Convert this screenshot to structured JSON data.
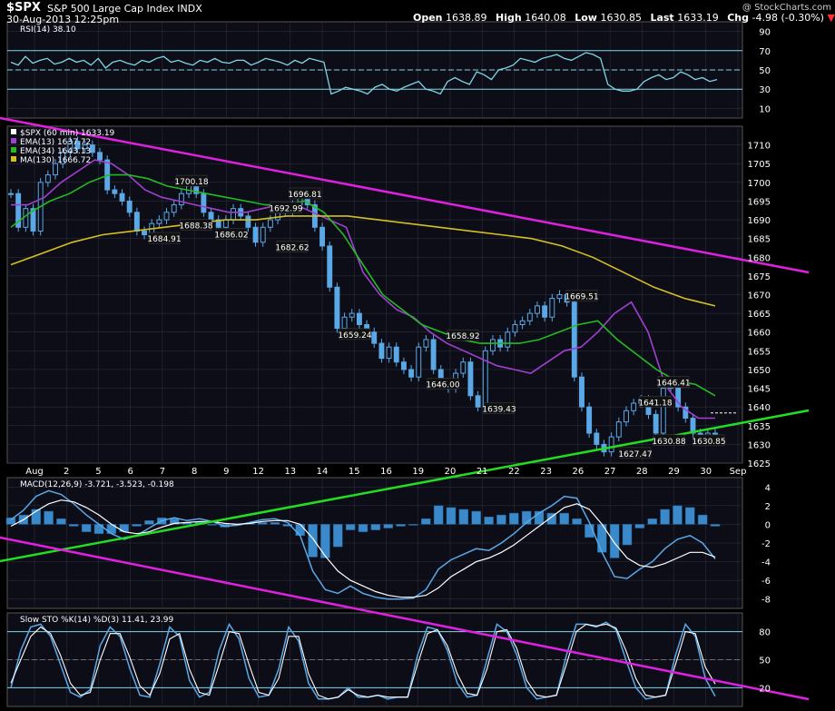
{
  "header": {
    "symbol": "$SPX",
    "description": "S&P 500 Large Cap Index  INDX",
    "datetime": "30-Aug-2013 12:25pm",
    "watermark": "@ StockCharts.com",
    "open_label": "Open",
    "open": "1638.89",
    "high_label": "High",
    "high": "1640.08",
    "low_label": "Low",
    "low": "1630.85",
    "last_label": "Last",
    "last": "1633.19",
    "chg_label": "Chg",
    "chg": "-4.98 (-0.30%)"
  },
  "colors": {
    "background": "#000000",
    "panel": "#0d0d18",
    "grid": "#333344",
    "candle": "#5aa9e6",
    "ema13": "#a040d0",
    "ema34": "#22bb22",
    "ma130": "#d4c020",
    "trend_magenta": "#e020e0",
    "trend_green": "#22dd22",
    "rsi_band": "#7fd6e6",
    "histogram": "#3a8acb",
    "signal_white": "#ffffff"
  },
  "chart_data": [
    {
      "type": "line",
      "title": "RSI(14) 38.10",
      "legend": [
        "RSI(14) 38.10"
      ],
      "ylim": [
        0,
        100
      ],
      "y_ticks": [
        10,
        30,
        50,
        70,
        90
      ],
      "bands": [
        30,
        70
      ],
      "series": [
        {
          "name": "RSI(14)",
          "values": [
            58,
            55,
            64,
            57,
            60,
            62,
            56,
            58,
            62,
            58,
            60,
            55,
            62,
            52,
            58,
            60,
            57,
            55,
            60,
            58,
            62,
            64,
            58,
            60,
            57,
            55,
            60,
            58,
            62,
            58,
            57,
            60,
            60,
            55,
            58,
            62,
            60,
            58,
            55,
            60,
            57,
            62,
            60,
            58,
            25,
            28,
            32,
            30,
            28,
            25,
            32,
            35,
            30,
            28,
            32,
            35,
            38,
            30,
            28,
            25,
            38,
            42,
            38,
            35,
            48,
            45,
            40,
            50,
            52,
            55,
            62,
            60,
            58,
            62,
            64,
            66,
            62,
            60,
            64,
            68,
            66,
            62,
            35,
            30,
            28,
            28,
            30,
            38,
            42,
            45,
            40,
            42,
            48,
            45,
            40,
            42,
            38,
            40
          ]
        }
      ]
    },
    {
      "type": "line",
      "title": "$SPX (60 min) 1633.19",
      "legend": [
        "$SPX (60 min) 1633.19",
        "EMA(13) 1637.72",
        "EMA(34) 1643.13",
        "MA(130) 1666.72"
      ],
      "x_tick_labels": [
        "Aug",
        "2",
        "5",
        "6",
        "7",
        "8",
        "9",
        "12",
        "13",
        "14",
        "15",
        "16",
        "19",
        "20",
        "21",
        "22",
        "23",
        "26",
        "27",
        "28",
        "29",
        "30",
        "Sep"
      ],
      "ylim": [
        1625,
        1715
      ],
      "y_ticks": [
        1625,
        1630,
        1635,
        1640,
        1645,
        1650,
        1655,
        1660,
        1665,
        1670,
        1675,
        1680,
        1685,
        1690,
        1695,
        1700,
        1705,
        1710
      ],
      "series": [
        {
          "name": "$SPX (60 min)",
          "values": [
            1697,
            1688,
            1693,
            1687,
            1700,
            1702,
            1705,
            1708,
            1711,
            1709,
            1710,
            1708,
            1706,
            1698,
            1697,
            1695,
            1692,
            1687,
            1686,
            1689,
            1690,
            1692,
            1694,
            1697,
            1700,
            1697,
            1692,
            1690,
            1688,
            1690,
            1693,
            1691,
            1688,
            1684,
            1688,
            1690,
            1693,
            1692,
            1694,
            1696,
            1694,
            1688,
            1683,
            1672,
            1661,
            1664,
            1665,
            1662,
            1660,
            1657,
            1653,
            1656,
            1652,
            1650,
            1648,
            1656,
            1658,
            1650,
            1646,
            1645,
            1649,
            1652,
            1643,
            1640,
            1655,
            1658,
            1656,
            1660,
            1662,
            1663,
            1665,
            1667,
            1664,
            1669,
            1670,
            1668,
            1648,
            1640,
            1633,
            1630,
            1628,
            1632,
            1636,
            1639,
            1641,
            1642,
            1638,
            1633,
            1645,
            1646,
            1640,
            1637,
            1633,
            1631,
            1633,
            1633
          ]
        },
        {
          "name": "EMA(13)",
          "values": [
            1694,
            1694,
            1696,
            1700,
            1703,
            1706,
            1705,
            1702,
            1698,
            1696,
            1695,
            1694,
            1693,
            1692,
            1692,
            1693,
            1694,
            1694,
            1692,
            1690,
            1688,
            1676,
            1670,
            1666,
            1664,
            1660,
            1657,
            1655,
            1653,
            1651,
            1650,
            1649,
            1652,
            1655,
            1656,
            1660,
            1665,
            1668,
            1660,
            1646,
            1640,
            1637,
            1637
          ]
        },
        {
          "name": "EMA(34)",
          "values": [
            1688,
            1692,
            1695,
            1697,
            1700,
            1702,
            1702,
            1701,
            1699,
            1698,
            1697,
            1696,
            1695,
            1694,
            1694,
            1695,
            1692,
            1686,
            1678,
            1670,
            1666,
            1662,
            1660,
            1658,
            1657,
            1657,
            1657,
            1658,
            1660,
            1662,
            1663,
            1658,
            1654,
            1650,
            1647,
            1646,
            1643
          ]
        },
        {
          "name": "MA(130)",
          "values": [
            1678,
            1681,
            1684,
            1686,
            1687,
            1688,
            1689,
            1690,
            1690,
            1691,
            1691,
            1691,
            1690,
            1689,
            1688,
            1687,
            1686,
            1685,
            1683,
            1680,
            1676,
            1672,
            1669,
            1667
          ]
        }
      ],
      "annotations": [
        "1700.18",
        "1696.81",
        "1692.99",
        "1684.91",
        "1688.38",
        "1686.02",
        "1682.62",
        "1659.24",
        "1658.92",
        "1646.00",
        "1639.43",
        "1669.51",
        "1646.41",
        "1641.18",
        "1627.47",
        "1630.88",
        "1630.85"
      ]
    },
    {
      "type": "bar",
      "title": "MACD(12,26,9) -3.721, -3.523, -0.198",
      "legend": [
        "MACD(12,26,9) -3.721, -3.523, -0.198"
      ],
      "ylim": [
        -9,
        5
      ],
      "y_ticks": [
        -8,
        -6,
        -4,
        -2,
        0,
        2,
        4
      ],
      "series": [
        {
          "name": "MACD",
          "values": [
            0.5,
            1.5,
            3.0,
            3.6,
            3.2,
            2.2,
            1.0,
            0,
            -1.0,
            -1.6,
            -1.2,
            -0.4,
            0.4,
            0.7,
            0.4,
            0.6,
            0.3,
            -0.2,
            -0.1,
            0.2,
            0.5,
            0.6,
            0.2,
            -1.2,
            -5.0,
            -7.0,
            -7.4,
            -6.6,
            -7.4,
            -7.8,
            -8.0,
            -8.0,
            -7.9,
            -7.0,
            -4.8,
            -3.8,
            -3.2,
            -2.6,
            -2.8,
            -2.0,
            -1.0,
            0.2,
            1.2,
            2.0,
            3.0,
            2.8,
            0.2,
            -3.0,
            -5.6,
            -5.8,
            -4.8,
            -4.0,
            -2.6,
            -1.6,
            -1.2,
            -2.0,
            -3.7
          ]
        },
        {
          "name": "Signal",
          "values": [
            -0.2,
            0.5,
            1.4,
            2.2,
            2.6,
            2.4,
            1.8,
            1.0,
            0,
            -0.8,
            -1.0,
            -0.8,
            -0.3,
            0.1,
            0.2,
            0.3,
            0.3,
            0.1,
            0,
            0.1,
            0.3,
            0.4,
            0.4,
            0,
            -1.5,
            -3.4,
            -5.0,
            -6.0,
            -6.6,
            -7.2,
            -7.6,
            -7.8,
            -7.8,
            -7.6,
            -6.8,
            -5.6,
            -4.8,
            -4.0,
            -3.6,
            -3.0,
            -2.2,
            -1.2,
            -0.2,
            0.8,
            1.8,
            2.2,
            1.6,
            0,
            -2.0,
            -3.6,
            -4.4,
            -4.6,
            -4.2,
            -3.6,
            -3.0,
            -3.0,
            -3.5
          ]
        }
      ]
    },
    {
      "type": "line",
      "title": "Slow STO %K(14) %D(3) 11.41, 23.99",
      "legend": [
        "Slow STO %K(14) %D(3) 11.41, 23.99"
      ],
      "ylim": [
        0,
        100
      ],
      "y_ticks": [
        20,
        50,
        80
      ],
      "bands": [
        20,
        80
      ],
      "series": [
        {
          "name": "%K",
          "values": [
            20,
            60,
            85,
            88,
            75,
            45,
            15,
            10,
            18,
            65,
            85,
            75,
            40,
            12,
            10,
            45,
            85,
            75,
            28,
            10,
            15,
            60,
            88,
            72,
            30,
            10,
            12,
            40,
            85,
            70,
            25,
            8,
            8,
            10,
            20,
            10,
            10,
            12,
            8,
            10,
            10,
            55,
            85,
            82,
            60,
            25,
            10,
            12,
            50,
            88,
            80,
            55,
            20,
            8,
            10,
            12,
            55,
            88,
            88,
            85,
            90,
            82,
            50,
            20,
            8,
            10,
            12,
            55,
            88,
            75,
            30,
            11
          ]
        },
        {
          "name": "%D",
          "values": [
            25,
            50,
            75,
            85,
            78,
            55,
            25,
            12,
            15,
            50,
            78,
            78,
            52,
            22,
            12,
            35,
            72,
            78,
            40,
            15,
            12,
            45,
            80,
            78,
            45,
            15,
            12,
            30,
            75,
            75,
            35,
            12,
            8,
            10,
            18,
            12,
            10,
            12,
            10,
            10,
            10,
            45,
            78,
            82,
            65,
            35,
            14,
            12,
            40,
            80,
            82,
            62,
            28,
            12,
            10,
            12,
            45,
            80,
            88,
            86,
            88,
            84,
            60,
            30,
            12,
            10,
            12,
            45,
            80,
            78,
            42,
            24
          ]
        }
      ]
    }
  ]
}
